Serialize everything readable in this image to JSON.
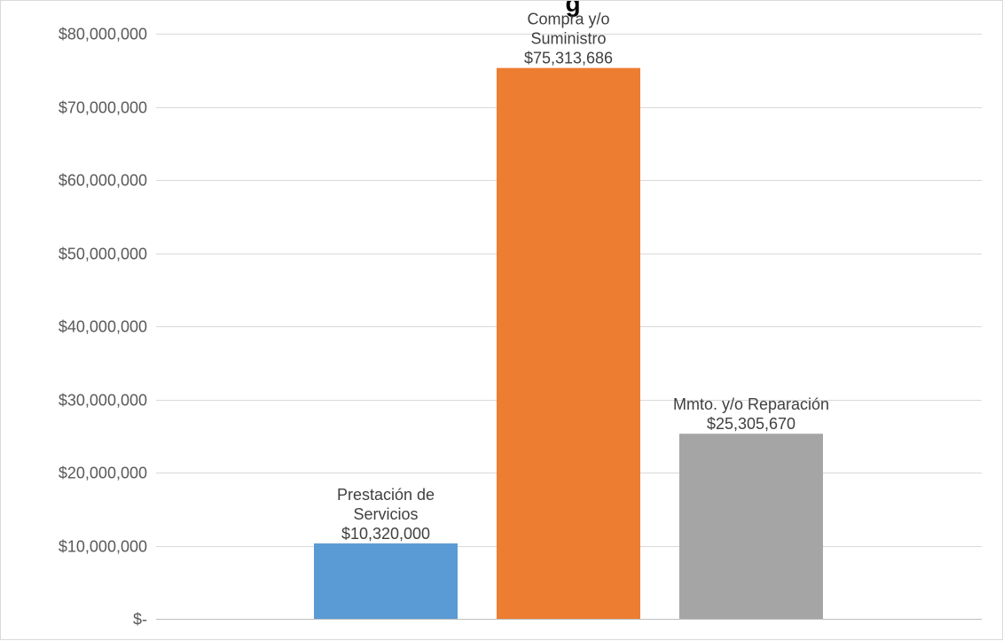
{
  "chart_data": {
    "type": "bar",
    "title": "g",
    "categories": [
      "Prestación de Servicios",
      "Compra y/o Suministro",
      "Mmto. y/o Reparación"
    ],
    "values": [
      10320000,
      75313686,
      25305670
    ],
    "value_labels": [
      "$10,320,000",
      "$75,313,686",
      "$25,305,670"
    ],
    "category_label_lines": [
      [
        "Prestación de",
        "Servicios"
      ],
      [
        "Compra y/o",
        "Suministro"
      ],
      [
        "Mmto. y/o Reparación"
      ]
    ],
    "colors": [
      "#5b9bd5",
      "#ed7d31",
      "#a5a5a5"
    ],
    "ylim": [
      0,
      80000000
    ],
    "yticks": [
      0,
      10000000,
      20000000,
      30000000,
      40000000,
      50000000,
      60000000,
      70000000,
      80000000
    ],
    "ytick_labels": [
      "$-",
      "$10,000,000",
      "$20,000,000",
      "$30,000,000",
      "$40,000,000",
      "$50,000,000",
      "$60,000,000",
      "$70,000,000",
      "$80,000,000"
    ],
    "grid": true,
    "legend": "none",
    "xlabel": "",
    "ylabel": ""
  }
}
